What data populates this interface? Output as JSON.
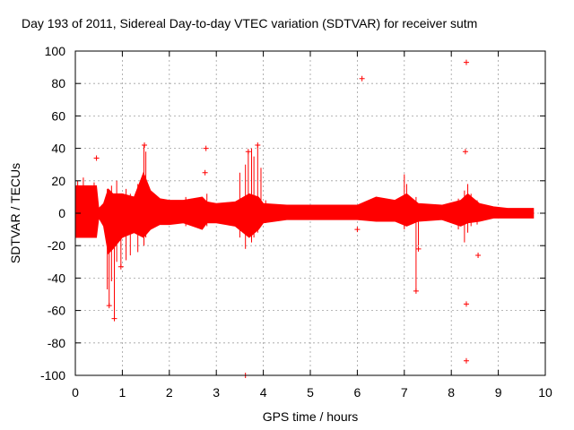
{
  "chart_data": {
    "type": "scatter",
    "title": "Day 193 of 2011, Sidereal Day-to-day VTEC variation (SDTVAR) for receiver sutm",
    "xlabel": "GPS time / hours",
    "ylabel": "SDTVAR / TECUs",
    "xlim": [
      0,
      10
    ],
    "ylim": [
      -100,
      100
    ],
    "xticks": [
      "0",
      "1",
      "2",
      "3",
      "4",
      "5",
      "6",
      "7",
      "8",
      "9",
      "10"
    ],
    "yticks": [
      "-100",
      "-80",
      "-60",
      "-40",
      "-20",
      "0",
      "20",
      "40",
      "60",
      "80",
      "100"
    ],
    "grid": true,
    "color": "#ff0000",
    "band": [
      {
        "x": 0.0,
        "lo": -15,
        "hi": 17
      },
      {
        "x": 0.45,
        "lo": -15,
        "hi": 17
      },
      {
        "x": 0.5,
        "lo": -3,
        "hi": 3
      },
      {
        "x": 0.6,
        "lo": -8,
        "hi": 6
      },
      {
        "x": 0.7,
        "lo": -25,
        "hi": 15
      },
      {
        "x": 0.8,
        "lo": -22,
        "hi": 12
      },
      {
        "x": 1.0,
        "lo": -15,
        "hi": 12
      },
      {
        "x": 1.25,
        "lo": -12,
        "hi": 10
      },
      {
        "x": 1.45,
        "lo": -15,
        "hi": 25
      },
      {
        "x": 1.6,
        "lo": -10,
        "hi": 14
      },
      {
        "x": 1.8,
        "lo": -7,
        "hi": 9
      },
      {
        "x": 2.0,
        "lo": -7,
        "hi": 8
      },
      {
        "x": 2.3,
        "lo": -6,
        "hi": 8
      },
      {
        "x": 2.7,
        "lo": -10,
        "hi": 10
      },
      {
        "x": 2.8,
        "lo": -6,
        "hi": 7
      },
      {
        "x": 3.0,
        "lo": -6,
        "hi": 6
      },
      {
        "x": 3.4,
        "lo": -8,
        "hi": 7
      },
      {
        "x": 3.7,
        "lo": -15,
        "hi": 12
      },
      {
        "x": 3.9,
        "lo": -10,
        "hi": 10
      },
      {
        "x": 4.0,
        "lo": -6,
        "hi": 6
      },
      {
        "x": 4.5,
        "lo": -4,
        "hi": 5
      },
      {
        "x": 5.0,
        "lo": -4,
        "hi": 5
      },
      {
        "x": 5.5,
        "lo": -4,
        "hi": 5
      },
      {
        "x": 6.0,
        "lo": -4,
        "hi": 5
      },
      {
        "x": 6.4,
        "lo": -5,
        "hi": 10
      },
      {
        "x": 6.8,
        "lo": -5,
        "hi": 8
      },
      {
        "x": 7.05,
        "lo": -8,
        "hi": 12
      },
      {
        "x": 7.3,
        "lo": -5,
        "hi": 6
      },
      {
        "x": 7.8,
        "lo": -4,
        "hi": 5
      },
      {
        "x": 8.2,
        "lo": -8,
        "hi": 8
      },
      {
        "x": 8.35,
        "lo": -6,
        "hi": 12
      },
      {
        "x": 8.6,
        "lo": -5,
        "hi": 6
      },
      {
        "x": 8.9,
        "lo": -3,
        "hi": 4
      },
      {
        "x": 9.2,
        "lo": -3,
        "hi": 3
      },
      {
        "x": 9.6,
        "lo": -3,
        "hi": 3
      },
      {
        "x": 9.75,
        "lo": -3,
        "hi": 3
      }
    ],
    "spikes": [
      {
        "x": 0.05,
        "lo": -15,
        "hi": 20
      },
      {
        "x": 0.17,
        "lo": -15,
        "hi": 22
      },
      {
        "x": 0.4,
        "lo": -12,
        "hi": 19
      },
      {
        "x": 0.68,
        "lo": -47,
        "hi": 15
      },
      {
        "x": 0.72,
        "lo": -57,
        "hi": 12
      },
      {
        "x": 0.77,
        "lo": -42,
        "hi": 17
      },
      {
        "x": 0.83,
        "lo": -65,
        "hi": 8
      },
      {
        "x": 0.88,
        "lo": -30,
        "hi": 20
      },
      {
        "x": 0.97,
        "lo": -33,
        "hi": 8
      },
      {
        "x": 1.08,
        "lo": -29,
        "hi": 15
      },
      {
        "x": 1.17,
        "lo": -26,
        "hi": 12
      },
      {
        "x": 1.33,
        "lo": -24,
        "hi": 18
      },
      {
        "x": 1.46,
        "lo": -20,
        "hi": 42
      },
      {
        "x": 1.5,
        "lo": -15,
        "hi": 38
      },
      {
        "x": 2.35,
        "lo": -8,
        "hi": 10
      },
      {
        "x": 2.8,
        "lo": -8,
        "hi": 12
      },
      {
        "x": 3.5,
        "lo": -15,
        "hi": 25
      },
      {
        "x": 3.62,
        "lo": -22,
        "hi": 30
      },
      {
        "x": 3.68,
        "lo": -10,
        "hi": 38
      },
      {
        "x": 3.75,
        "lo": -18,
        "hi": 40
      },
      {
        "x": 3.8,
        "lo": -15,
        "hi": 35
      },
      {
        "x": 3.88,
        "lo": -12,
        "hi": 42
      },
      {
        "x": 3.95,
        "lo": -8,
        "hi": 28
      },
      {
        "x": 4.05,
        "lo": -6,
        "hi": 8
      },
      {
        "x": 7.0,
        "lo": -10,
        "hi": 24
      },
      {
        "x": 7.05,
        "lo": -8,
        "hi": 18
      },
      {
        "x": 7.25,
        "lo": -48,
        "hi": 10
      },
      {
        "x": 7.3,
        "lo": -20,
        "hi": 6
      },
      {
        "x": 8.15,
        "lo": -10,
        "hi": 9
      },
      {
        "x": 8.28,
        "lo": -18,
        "hi": 14
      },
      {
        "x": 8.35,
        "lo": -12,
        "hi": 18
      },
      {
        "x": 8.42,
        "lo": -8,
        "hi": 12
      },
      {
        "x": 8.55,
        "lo": -7,
        "hi": 8
      }
    ],
    "outliers": [
      {
        "x": 0.45,
        "y": 34
      },
      {
        "x": 0.72,
        "y": -57
      },
      {
        "x": 0.83,
        "y": -65
      },
      {
        "x": 0.97,
        "y": -33
      },
      {
        "x": 1.47,
        "y": 42
      },
      {
        "x": 2.78,
        "y": 40
      },
      {
        "x": 2.76,
        "y": 25
      },
      {
        "x": 3.62,
        "y": -100
      },
      {
        "x": 3.68,
        "y": 38
      },
      {
        "x": 3.88,
        "y": 42
      },
      {
        "x": 6.1,
        "y": 83
      },
      {
        "x": 6.0,
        "y": -10
      },
      {
        "x": 7.25,
        "y": -48
      },
      {
        "x": 8.32,
        "y": 93
      },
      {
        "x": 8.3,
        "y": 38
      },
      {
        "x": 8.32,
        "y": -56
      },
      {
        "x": 8.32,
        "y": -91
      },
      {
        "x": 8.57,
        "y": -26
      },
      {
        "x": 7.3,
        "y": -22
      }
    ]
  }
}
